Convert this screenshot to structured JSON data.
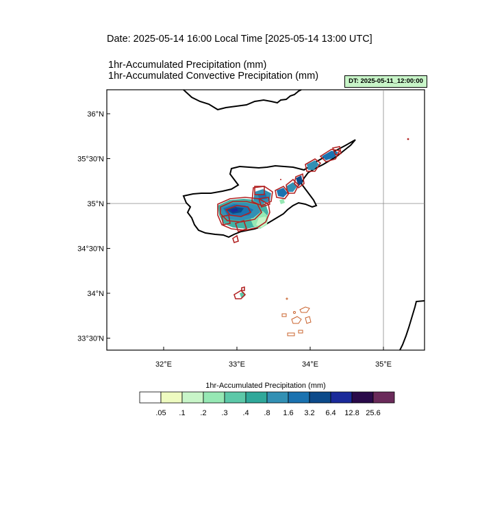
{
  "header": {
    "date_line": "Date: 2025-05-14  16:00 Local Time [2025-05-14  13:00 UTC]",
    "line1": "1hr-Accumulated Precipitation   (mm)",
    "line2": "1hr-Accumulated Convective Precipitation   (mm)",
    "dt_badge": "DT: 2025-05-11_12:00:00"
  },
  "map": {
    "region": "Cyprus",
    "lon_range": [
      31.2,
      35.55
    ],
    "lat_range": [
      33.3,
      36.25
    ],
    "grid_line_lon": 35,
    "grid_line_lat": 35,
    "lat_labels": [
      "36°N",
      "35°30'N",
      "35°N",
      "34°30'N",
      "34°N",
      "33°30'N"
    ],
    "lat_values": [
      36,
      35.5,
      35,
      34.5,
      34,
      33.5
    ],
    "lon_labels": [
      "32°E",
      "33°E",
      "34°E",
      "35°E"
    ],
    "lon_values": [
      32,
      33,
      34,
      35
    ],
    "convective_contour_color": "#b22222",
    "precip_core_color": "#1a3c8c"
  },
  "colorbar": {
    "title": "1hr-Accumulated Precipitation  (mm)",
    "colors": [
      "#ffffff",
      "#eefbc0",
      "#c8f5c8",
      "#96e8b4",
      "#5cc8a8",
      "#2fa89a",
      "#3290b4",
      "#1a72b0",
      "#0c4a8a",
      "#1a2a9a",
      "#2a0a4a",
      "#6a2a5a"
    ],
    "labels": [
      ".05",
      ".1",
      ".2",
      ".3",
      ".4",
      ".8",
      "1.6",
      "3.2",
      "6.4",
      "12.8",
      "25.6"
    ]
  }
}
